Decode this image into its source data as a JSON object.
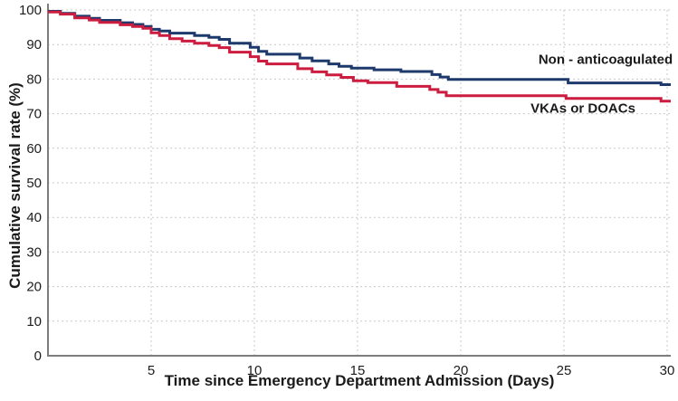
{
  "figure": {
    "background_color": "#ffffff",
    "text_color": "#1b1b1b"
  },
  "chart_data": {
    "type": "line",
    "subtype": "kaplan-meier-step-survival",
    "title": "",
    "xlabel": "Time since Emergency Department Admission (Days)",
    "ylabel": "Cumulative survival rate (%)",
    "xlim": [
      0,
      30
    ],
    "ylim": [
      0,
      100
    ],
    "x_ticks": [
      5,
      10,
      15,
      20,
      25,
      30
    ],
    "y_ticks": [
      0,
      10,
      20,
      30,
      40,
      50,
      60,
      70,
      80,
      90,
      100
    ],
    "grid": "dotted",
    "grid_color": "#c9c9c9",
    "axis_color": "#7d7d7d",
    "legend_position": "inline-right-of-plot",
    "series": [
      {
        "id": "non-anticoagulated",
        "name": "Non - anticoagulated",
        "color": "#1e3a6d",
        "step": true,
        "points": [
          [
            0,
            99.6
          ],
          [
            0.6,
            99.0
          ],
          [
            1.3,
            98.2
          ],
          [
            2.0,
            97.6
          ],
          [
            2.5,
            97.0
          ],
          [
            3.5,
            96.3
          ],
          [
            4.1,
            95.8
          ],
          [
            4.6,
            95.2
          ],
          [
            5.0,
            94.4
          ],
          [
            5.4,
            93.9
          ],
          [
            5.9,
            93.3
          ],
          [
            7.1,
            92.6
          ],
          [
            7.8,
            92.1
          ],
          [
            8.3,
            91.5
          ],
          [
            8.8,
            90.4
          ],
          [
            9.8,
            89.2
          ],
          [
            10.2,
            88.0
          ],
          [
            10.6,
            87.2
          ],
          [
            12.2,
            86.1
          ],
          [
            12.8,
            85.3
          ],
          [
            13.6,
            84.4
          ],
          [
            14.1,
            83.7
          ],
          [
            14.7,
            83.2
          ],
          [
            15.8,
            82.7
          ],
          [
            17.1,
            82.2
          ],
          [
            18.6,
            81.3
          ],
          [
            19.0,
            80.6
          ],
          [
            19.4,
            79.9
          ],
          [
            25.2,
            78.9
          ],
          [
            29.7,
            78.4
          ]
        ]
      },
      {
        "id": "vkas-doacs",
        "name": "VKAs or DOACs",
        "color": "#cc1c3f",
        "step": true,
        "points": [
          [
            0,
            99.4
          ],
          [
            0.6,
            98.8
          ],
          [
            1.3,
            97.7
          ],
          [
            2.0,
            97.1
          ],
          [
            2.5,
            96.4
          ],
          [
            3.5,
            95.7
          ],
          [
            4.1,
            95.2
          ],
          [
            4.6,
            94.7
          ],
          [
            5.0,
            93.4
          ],
          [
            5.4,
            92.6
          ],
          [
            5.9,
            91.7
          ],
          [
            6.5,
            91.0
          ],
          [
            7.1,
            90.4
          ],
          [
            7.8,
            89.7
          ],
          [
            8.3,
            89.1
          ],
          [
            8.8,
            87.8
          ],
          [
            9.8,
            86.5
          ],
          [
            10.2,
            85.2
          ],
          [
            10.6,
            84.4
          ],
          [
            12.1,
            83.0
          ],
          [
            12.8,
            82.1
          ],
          [
            13.5,
            81.2
          ],
          [
            14.2,
            80.5
          ],
          [
            14.8,
            79.5
          ],
          [
            15.5,
            79.0
          ],
          [
            16.9,
            77.9
          ],
          [
            18.5,
            77.0
          ],
          [
            18.9,
            76.2
          ],
          [
            19.3,
            75.2
          ],
          [
            25.1,
            74.4
          ],
          [
            29.7,
            73.6
          ]
        ]
      }
    ]
  }
}
